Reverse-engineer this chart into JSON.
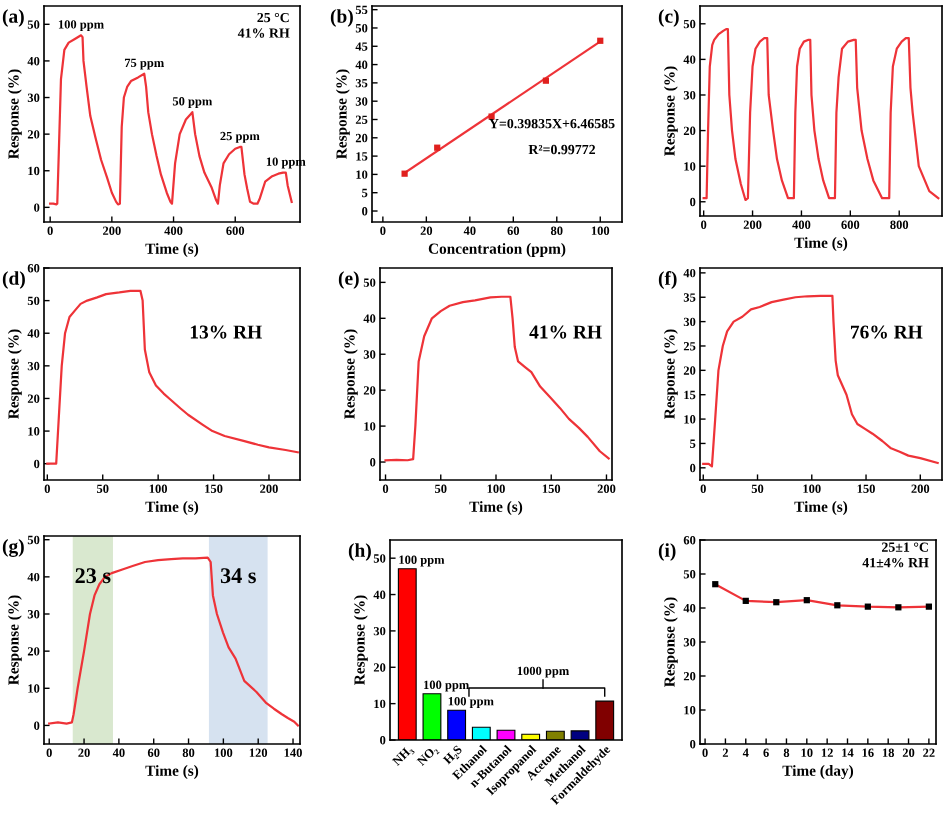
{
  "chart_data": [
    {
      "type": "line",
      "title": "(a)",
      "xlabel": "Time (s)",
      "ylabel": "Response (%)",
      "xlim": [
        -20,
        810
      ],
      "xticks": [
        0,
        200,
        400,
        600
      ],
      "ylim": [
        -4,
        55
      ],
      "yticks": [
        0,
        10,
        20,
        30,
        40,
        50
      ],
      "series": [
        {
          "color": "#ee3338",
          "x": [
            0,
            10,
            20,
            23,
            28,
            35,
            46,
            60,
            80,
            100,
            105,
            108,
            118,
            130,
            147,
            165,
            185,
            200,
            214,
            220,
            226,
            232,
            239,
            250,
            262,
            285,
            305,
            311,
            318,
            330,
            345,
            359,
            378,
            390,
            395,
            405,
            420,
            440,
            456,
            461,
            470,
            484,
            500,
            523,
            538,
            544,
            550,
            562,
            580,
            600,
            615,
            620,
            630,
            639,
            648,
            660,
            672,
            680,
            697,
            720,
            740,
            755,
            764,
            770,
            783
          ],
          "values": [
            1,
            1,
            0.8,
            1,
            15,
            35,
            43,
            45,
            46,
            47,
            46.5,
            40,
            33,
            25,
            19,
            13,
            8,
            4,
            1.5,
            0.8,
            1,
            22,
            30,
            33,
            34.5,
            35.5,
            36.5,
            33,
            26,
            20,
            14,
            9,
            4,
            1.5,
            1,
            12,
            20,
            24,
            25.5,
            26,
            20,
            14,
            9.5,
            5.5,
            2,
            1,
            6,
            12,
            14.5,
            16,
            16.5,
            16.5,
            9,
            5,
            1.5,
            1,
            1,
            2.5,
            7,
            8.5,
            9.2,
            9.5,
            9.5,
            6,
            1.5
          ]
        }
      ],
      "annotations": [
        "25 °C\n41% RH",
        {
          "text": "100 ppm",
          "x": 100,
          "y": 47
        },
        {
          "text": "75 ppm",
          "x": 305,
          "y": 36.5
        },
        {
          "text": "50 ppm",
          "x": 461,
          "y": 26
        },
        {
          "text": "25 ppm",
          "x": 615,
          "y": 16.5
        },
        {
          "text": "10 ppm",
          "x": 764,
          "y": 9.5
        }
      ]
    },
    {
      "type": "scatter",
      "title": "(b)",
      "xlabel": "Concentration (ppm)",
      "ylabel": "Response (%)",
      "xlim": [
        -5,
        110
      ],
      "xticks": [
        0,
        20,
        40,
        60,
        80,
        100
      ],
      "ylim": [
        -3,
        56
      ],
      "yticks": [
        0,
        5,
        10,
        15,
        20,
        25,
        30,
        35,
        40,
        45,
        50,
        55
      ],
      "series": [
        {
          "type": "line",
          "color": "#ee3338",
          "x": [
            10,
            100
          ],
          "values": [
            10.4,
            46.3
          ]
        },
        {
          "type": "scatter",
          "color": "#e0201e",
          "marker": "square",
          "x": [
            10,
            25,
            50,
            75,
            100
          ],
          "values": [
            10.2,
            17.3,
            25.8,
            35.6,
            46.5
          ]
        }
      ],
      "annotations": [
        "Y=0.39835X+6.46585",
        "R²=0.99772"
      ]
    },
    {
      "type": "line",
      "title": "(c)",
      "xlabel": "Time (s)",
      "ylabel": "Response (%)",
      "xlim": [
        -15,
        975
      ],
      "xticks": [
        0,
        200,
        400,
        600,
        800
      ],
      "ylim": [
        -4,
        55
      ],
      "yticks": [
        0,
        10,
        20,
        30,
        40,
        50
      ],
      "series": [
        {
          "color": "#ee3338",
          "x": [
            0,
            12,
            18,
            25,
            35,
            43,
            60,
            80,
            92,
            99,
            105,
            116,
            130,
            152,
            171,
            181,
            190,
            200,
            212,
            230,
            248,
            260,
            266,
            284,
            300,
            320,
            345,
            369,
            375,
            382,
            393,
            410,
            429,
            436,
            441,
            453,
            470,
            489,
            513,
            537,
            543,
            552,
            566,
            590,
            614,
            622,
            628,
            646,
            670,
            694,
            730,
            759,
            765,
            774,
            790,
            810,
            827,
            839,
            846,
            855,
            880,
            923,
            960
          ],
          "values": [
            1,
            1,
            20,
            38,
            44,
            45.5,
            47,
            48,
            48.5,
            48.5,
            30,
            20,
            12,
            5,
            0.5,
            1,
            25,
            38,
            43,
            45,
            46,
            46,
            30,
            20,
            12,
            6,
            1,
            1,
            25,
            38,
            43,
            45,
            45.5,
            45.5,
            30,
            20,
            12,
            6,
            1,
            1,
            25,
            35,
            43,
            45,
            45.5,
            45.5,
            32,
            20,
            12,
            6,
            1,
            1,
            25,
            38,
            43,
            45,
            46,
            46,
            32,
            25,
            10,
            3,
            1
          ]
        }
      ]
    },
    {
      "type": "line",
      "title": "(d)",
      "xlabel": "Time (s)",
      "ylabel": "Response (%)",
      "xlim": [
        -3,
        228
      ],
      "xticks": [
        0,
        50,
        100,
        150,
        200
      ],
      "ylim": [
        -5,
        60
      ],
      "yticks": [
        0,
        10,
        20,
        30,
        40,
        50,
        60
      ],
      "series": [
        {
          "color": "#ee3338",
          "x": [
            0,
            8,
            10,
            13,
            16,
            20,
            25,
            30,
            36,
            45,
            53,
            65,
            75,
            84,
            86,
            88,
            92,
            98,
            105,
            110,
            120,
            127,
            140,
            149,
            160,
            177,
            190,
            200,
            215,
            226
          ],
          "values": [
            0,
            0,
            12,
            30,
            40,
            45,
            47,
            49,
            50,
            51,
            52,
            52.5,
            53,
            53,
            50,
            35,
            28,
            24,
            21.5,
            20,
            17,
            15,
            12,
            10,
            8.5,
            7,
            5.8,
            5,
            4.2,
            3.5
          ]
        }
      ],
      "annotations": [
        "13% RH"
      ]
    },
    {
      "type": "line",
      "title": "(e)",
      "xlabel": "Time (s)",
      "ylabel": "Response (%)",
      "xlim": [
        -5,
        205
      ],
      "xticks": [
        0,
        50,
        100,
        150,
        200
      ],
      "ylim": [
        -5,
        54
      ],
      "yticks": [
        0,
        10,
        20,
        30,
        40,
        50
      ],
      "series": [
        {
          "color": "#ee3338",
          "x": [
            0,
            10,
            20,
            25,
            27,
            30,
            35,
            42,
            50,
            58,
            70,
            81,
            95,
            105,
            113,
            115,
            117,
            120,
            126,
            132,
            140,
            149,
            158,
            166,
            175,
            183,
            194,
            202
          ],
          "values": [
            0.5,
            0.6,
            0.5,
            0.8,
            10,
            28,
            35,
            40,
            42,
            43.5,
            44.5,
            45,
            45.8,
            46,
            46,
            40,
            32,
            28,
            26.5,
            25,
            21,
            18,
            15,
            12,
            9.5,
            7,
            3,
            1
          ]
        }
      ],
      "annotations": [
        "41% RH"
      ]
    },
    {
      "type": "line",
      "title": "(f)",
      "xlabel": "Time (s)",
      "ylabel": "Response (%)",
      "xlim": [
        -3,
        220
      ],
      "xticks": [
        0,
        50,
        100,
        150,
        200
      ],
      "ylim": [
        -2.5,
        41
      ],
      "yticks": [
        0,
        5,
        10,
        15,
        20,
        25,
        30,
        35,
        40
      ],
      "series": [
        {
          "color": "#ee3338",
          "x": [
            0,
            5,
            8,
            11,
            14,
            18,
            22,
            28,
            36,
            44,
            52,
            63,
            74,
            85,
            96,
            108,
            119,
            120,
            122,
            124,
            128,
            132,
            137,
            142,
            149,
            156,
            165,
            173,
            181,
            189,
            200,
            216
          ],
          "values": [
            0.8,
            0.8,
            0.3,
            10,
            20,
            25,
            28,
            30,
            31,
            32.5,
            33,
            34,
            34.5,
            35,
            35.2,
            35.3,
            35.3,
            30,
            22,
            19,
            17,
            15,
            11,
            9,
            8,
            7,
            5.5,
            4,
            3.3,
            2.5,
            2,
            1
          ]
        }
      ],
      "annotations": [
        "76% RH"
      ]
    },
    {
      "type": "line",
      "title": "(g)",
      "xlabel": "Time (s)",
      "ylabel": "Response (%)",
      "xlim": [
        -3,
        144
      ],
      "xticks": [
        0,
        20,
        40,
        60,
        80,
        100,
        120,
        140
      ],
      "ylim": [
        -5,
        51
      ],
      "yticks": [
        0,
        10,
        20,
        30,
        40,
        50
      ],
      "bands": [
        {
          "axis": "x",
          "from": 13.5,
          "to": 36.6,
          "label": "23 s",
          "color": "#d9e8cf"
        },
        {
          "axis": "x",
          "from": 91.7,
          "to": 125.4,
          "label": "34 s",
          "color": "#d6e2f0"
        }
      ],
      "series": [
        {
          "color": "#ee3338",
          "x": [
            0,
            5,
            10,
            13,
            14,
            16.3,
            20,
            23.4,
            26,
            28.8,
            32,
            35.9,
            42,
            48.3,
            55,
            62.5,
            70,
            76.7,
            84,
            91,
            92.7,
            94,
            96.3,
            99.8,
            103,
            107,
            112,
            119,
            124.7,
            129,
            133.6,
            137,
            140.7,
            142.8
          ],
          "values": [
            0.5,
            0.8,
            0.5,
            0.8,
            3,
            10,
            20,
            30,
            35,
            38,
            40,
            41,
            42,
            43,
            44,
            44.5,
            44.8,
            45,
            45,
            45.2,
            44,
            35,
            30,
            25,
            21,
            18,
            12,
            9,
            6,
            4.5,
            3,
            2,
            1,
            0
          ]
        }
      ]
    },
    {
      "type": "bar",
      "title": "(h)",
      "ylabel": "Response (%)",
      "ylim": [
        0,
        55
      ],
      "yticks": [
        0,
        10,
        20,
        30,
        40,
        50
      ],
      "categories": [
        "NH₃",
        "NO₂",
        "H₂S",
        "Ethanol",
        "n-Butanol",
        "Isopropanol",
        "Acetone",
        "Methanol",
        "Formaldehyde"
      ],
      "series": [
        {
          "values": [
            47.1,
            12.7,
            8.2,
            3.5,
            2.7,
            1.6,
            2.4,
            2.5,
            10.7
          ],
          "colors": [
            "#ff0000",
            "#00ff00",
            "#0000ff",
            "#00ffff",
            "#ff00ff",
            "#ffff00",
            "#808000",
            "#000080",
            "#800000"
          ]
        }
      ],
      "annotations": [
        {
          "text": "100 ppm",
          "x": "NH₃",
          "y": 47.1
        },
        {
          "text": "100 ppm",
          "x": "NO₂",
          "y": 12.7
        },
        {
          "text": "100 ppm",
          "x": "H₂S",
          "y": 8.2
        },
        "1000 ppm"
      ]
    },
    {
      "type": "line",
      "title": "(i)",
      "xlabel": "Time (day)",
      "ylabel": "Response (%)",
      "xlim": [
        -0.5,
        22.7
      ],
      "xticks": [
        0,
        2,
        4,
        6,
        8,
        10,
        12,
        14,
        16,
        18,
        20,
        22
      ],
      "ylim": [
        0,
        60
      ],
      "yticks": [
        0,
        10,
        20,
        30,
        40,
        50,
        60
      ],
      "series": [
        {
          "color": "#ee3338",
          "x": [
            1,
            4,
            7,
            10,
            13,
            16,
            19,
            22
          ],
          "values": [
            47,
            42.1,
            41.7,
            42.3,
            40.8,
            40.4,
            40.2,
            40.4
          ]
        },
        {
          "type": "scatter",
          "color": "#000000",
          "marker": "square",
          "x": [
            1,
            4,
            7,
            10,
            13,
            16,
            19,
            22
          ],
          "values": [
            47,
            42.1,
            41.7,
            42.3,
            40.8,
            40.4,
            40.2,
            40.4
          ]
        }
      ],
      "annotations": [
        "25±1 °C\n41±4% RH"
      ]
    }
  ]
}
